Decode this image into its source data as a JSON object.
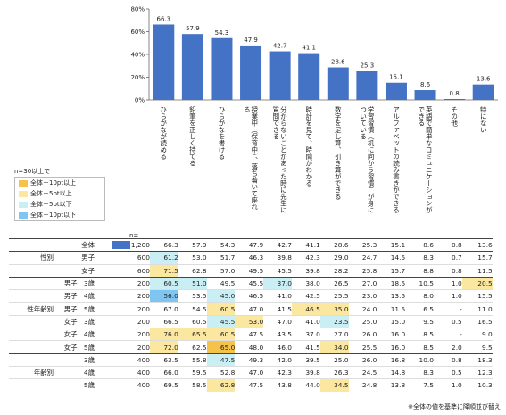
{
  "chart_data": {
    "type": "bar",
    "ylim": [
      0,
      80
    ],
    "yticks": [
      "0%",
      "20%",
      "40%",
      "60%",
      "80%"
    ],
    "categories": [
      "ひらがなが読める",
      "鉛筆を正しく持てる",
      "ひらがなを書ける",
      "授業中（保育中）、落ち着いて座れる",
      "分からないことがあった時に先生に質問できる",
      "時計を見て、時間がわかる",
      "数字を足し算、引き算ができる",
      "学習習慣（机に向かう習慣）が身についている",
      "アルファベットの読み書きができる",
      "英語で簡単なコミュニケーションができる",
      "その他",
      "特にない"
    ],
    "values": [
      66.3,
      57.9,
      54.3,
      47.9,
      42.7,
      41.1,
      28.6,
      25.3,
      15.1,
      8.6,
      0.8,
      13.6
    ],
    "value_labels": [
      "66.3",
      "57.9",
      "54.3",
      "47.9",
      "42.7",
      "41.1",
      "28.6",
      "25.3",
      "15.1",
      "8.6",
      "0.8",
      "13.6"
    ],
    "bar_color": "#4472c4"
  },
  "legend": {
    "title": "n=30以上で",
    "items": [
      {
        "label": "全体＋10pt以上",
        "color": "#f6c34a"
      },
      {
        "label": "全体＋5pt以上",
        "color": "#fbe79f"
      },
      {
        "label": "全体－5pt以下",
        "color": "#c9eff4"
      },
      {
        "label": "全体－10pt以下",
        "color": "#7ec5f2"
      }
    ]
  },
  "n_label": "n=",
  "table": {
    "rows": [
      {
        "group": "",
        "sub": "全体",
        "swatch": true,
        "n": "1,200",
        "values": [
          "66.3",
          "57.9",
          "54.3",
          "47.9",
          "42.7",
          "41.1",
          "28.6",
          "25.3",
          "15.1",
          "8.6",
          "0.8",
          "13.6"
        ],
        "hl": [
          "",
          "",
          "",
          "",
          "",
          "",
          "",
          "",
          "",
          "",
          "",
          ""
        ],
        "cls": "firstrow"
      },
      {
        "group": "性別",
        "sub": "男子",
        "n": "600",
        "values": [
          "61.2",
          "53.0",
          "51.7",
          "46.3",
          "39.8",
          "42.3",
          "29.0",
          "24.7",
          "14.5",
          "8.3",
          "0.7",
          "15.7"
        ],
        "hl": [
          "lo5",
          "",
          "",
          "",
          "",
          "",
          "",
          "",
          "",
          "",
          "",
          ""
        ],
        "cls": "sep"
      },
      {
        "group": "",
        "sub": "女子",
        "n": "600",
        "values": [
          "71.5",
          "62.8",
          "57.0",
          "49.5",
          "45.5",
          "39.8",
          "28.2",
          "25.8",
          "15.7",
          "8.8",
          "0.8",
          "11.5"
        ],
        "hl": [
          "hi5",
          "",
          "",
          "",
          "",
          "",
          "",
          "",
          "",
          "",
          "",
          ""
        ],
        "cls": "thin"
      },
      {
        "group": "",
        "sub": "男子　3歳",
        "n": "200",
        "values": [
          "60.5",
          "51.0",
          "49.5",
          "45.5",
          "37.0",
          "38.0",
          "26.5",
          "27.0",
          "18.5",
          "10.5",
          "1.0",
          "20.5"
        ],
        "hl": [
          "lo5",
          "lo5",
          "",
          "",
          "lo5",
          "",
          "",
          "",
          "",
          "",
          "",
          "hi5"
        ],
        "cls": "sep"
      },
      {
        "group": "",
        "sub": "男子　4歳",
        "n": "200",
        "values": [
          "56.0",
          "53.5",
          "45.0",
          "46.5",
          "41.0",
          "42.5",
          "25.5",
          "23.0",
          "13.5",
          "8.0",
          "1.0",
          "15.5"
        ],
        "hl": [
          "lo10",
          "",
          "lo5",
          "",
          "",
          "",
          "",
          "",
          "",
          "",
          "",
          ""
        ],
        "cls": "thin"
      },
      {
        "group": "性年齢別",
        "sub": "男子　5歳",
        "n": "200",
        "values": [
          "67.0",
          "54.5",
          "60.5",
          "47.0",
          "41.5",
          "46.5",
          "35.0",
          "24.0",
          "11.5",
          "6.5",
          "-",
          "11.0"
        ],
        "hl": [
          "",
          "",
          "hi5",
          "",
          "",
          "hi5",
          "hi5",
          "",
          "",
          "",
          "",
          ""
        ],
        "cls": "thin"
      },
      {
        "group": "",
        "sub": "女子　3歳",
        "n": "200",
        "values": [
          "66.5",
          "60.5",
          "45.5",
          "53.0",
          "47.0",
          "41.0",
          "23.5",
          "25.0",
          "15.0",
          "9.5",
          "0.5",
          "16.5"
        ],
        "hl": [
          "",
          "",
          "lo5",
          "hi5",
          "",
          "",
          "lo5",
          "",
          "",
          "",
          "",
          ""
        ],
        "cls": "thin"
      },
      {
        "group": "",
        "sub": "女子　4歳",
        "n": "200",
        "values": [
          "76.0",
          "65.5",
          "60.5",
          "47.5",
          "43.5",
          "37.0",
          "27.0",
          "26.0",
          "16.0",
          "8.5",
          "-",
          "9.0"
        ],
        "hl": [
          "hi5",
          "hi5",
          "hi5",
          "",
          "",
          "",
          "",
          "",
          "",
          "",
          "",
          ""
        ],
        "cls": "thin"
      },
      {
        "group": "",
        "sub": "女子　5歳",
        "n": "200",
        "values": [
          "72.0",
          "62.5",
          "65.0",
          "48.0",
          "46.0",
          "41.5",
          "34.0",
          "25.5",
          "16.0",
          "8.5",
          "2.0",
          "9.5"
        ],
        "hl": [
          "hi5",
          "",
          "hi10",
          "",
          "",
          "",
          "hi5",
          "",
          "",
          "",
          "",
          ""
        ],
        "cls": "thin"
      },
      {
        "group": "",
        "sub": "3歳",
        "n": "400",
        "values": [
          "63.5",
          "55.8",
          "47.5",
          "49.3",
          "42.0",
          "39.5",
          "25.0",
          "26.0",
          "16.8",
          "10.0",
          "0.8",
          "18.3"
        ],
        "hl": [
          "",
          "",
          "lo5",
          "",
          "",
          "",
          "",
          "",
          "",
          "",
          "",
          ""
        ],
        "cls": "sep"
      },
      {
        "group": "年齢別",
        "sub": "4歳",
        "n": "400",
        "values": [
          "66.0",
          "59.5",
          "52.8",
          "47.0",
          "42.3",
          "39.8",
          "26.3",
          "24.5",
          "14.8",
          "8.3",
          "0.5",
          "12.3"
        ],
        "hl": [
          "",
          "",
          "",
          "",
          "",
          "",
          "",
          "",
          "",
          "",
          "",
          ""
        ],
        "cls": "thin"
      },
      {
        "group": "",
        "sub": "5歳",
        "n": "400",
        "values": [
          "69.5",
          "58.5",
          "62.8",
          "47.5",
          "43.8",
          "44.0",
          "34.5",
          "24.8",
          "13.8",
          "7.5",
          "1.0",
          "10.3"
        ],
        "hl": [
          "",
          "",
          "hi5",
          "",
          "",
          "",
          "hi5",
          "",
          "",
          "",
          "",
          ""
        ],
        "cls": "thin"
      }
    ]
  },
  "footnote": "※全体の値を基準に降順並び替え"
}
